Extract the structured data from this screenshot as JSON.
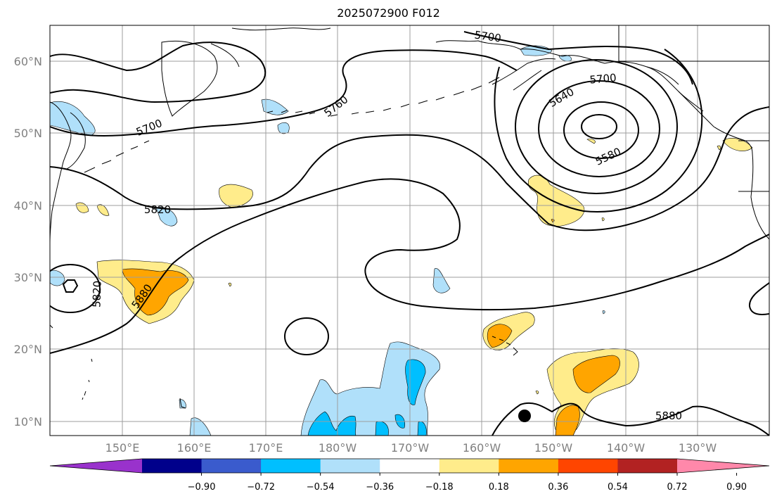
{
  "title": "2025072900 F012",
  "lat_labels": [
    "60°N",
    "50°N",
    "40°N",
    "30°N",
    "20°N",
    "10°N"
  ],
  "lon_labels": [
    "150°E",
    "160°E",
    "170°E",
    "180°W",
    "170°W",
    "160°W",
    "150°W",
    "140°W",
    "130°W"
  ],
  "contour_labels": [
    "5700",
    "5760",
    "5700",
    "5640",
    "5700",
    "5580",
    "5820",
    "5820",
    "5880",
    "5880"
  ],
  "colorbar": {
    "ticks": [
      "−0.90",
      "−0.72",
      "−0.54",
      "−0.36",
      "−0.18",
      "0.18",
      "0.36",
      "0.54",
      "0.72",
      "0.90"
    ],
    "colors": [
      "#9932cc",
      "#00008b",
      "#3a5bcd",
      "#00bfff",
      "#b0e0fa",
      "#ffffff",
      "#ffec8b",
      "#ffa500",
      "#ff4500",
      "#b22222",
      "#ff88aa"
    ]
  },
  "shading_colors": {
    "light_blue": "#b0e0fa",
    "blue": "#00bfff",
    "light_yellow": "#ffec8b",
    "orange": "#ffa500"
  }
}
